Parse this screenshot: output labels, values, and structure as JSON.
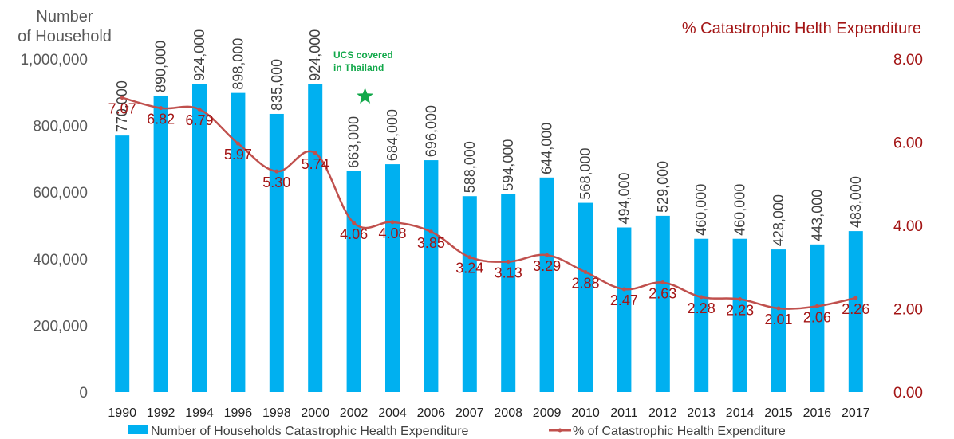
{
  "chart_data": {
    "type": "bar",
    "categories": [
      "1990",
      "1992",
      "1994",
      "1996",
      "1998",
      "2000",
      "2002",
      "2004",
      "2006",
      "2007",
      "2008",
      "2009",
      "2010",
      "2011",
      "2012",
      "2013",
      "2014",
      "2015",
      "2016",
      "2017"
    ],
    "series": [
      {
        "name": "Number of Households Catastrophic Health Expenditure",
        "type": "bar",
        "axis": "left",
        "color": "#00b0f0",
        "values": [
          770000,
          890000,
          924000,
          898000,
          835000,
          924000,
          663000,
          684000,
          696000,
          588000,
          594000,
          644000,
          568000,
          494000,
          529000,
          460000,
          460000,
          428000,
          443000,
          483000
        ],
        "labels": [
          "770,000",
          "890,000",
          "924,000",
          "898,000",
          "835,000",
          "924,000",
          "663,000",
          "684,000",
          "696,000",
          "588,000",
          "594,000",
          "644,000",
          "568,000",
          "494,000",
          "529,000",
          "460,000",
          "460,000",
          "428,000",
          "443,000",
          "483,000"
        ]
      },
      {
        "name": "% of Catastrophic Health Expenditure",
        "type": "line",
        "axis": "right",
        "color": "#c0504d",
        "values": [
          7.07,
          6.82,
          6.79,
          5.97,
          5.3,
          5.74,
          4.06,
          4.08,
          3.85,
          3.24,
          3.13,
          3.29,
          2.88,
          2.47,
          2.63,
          2.28,
          2.23,
          2.01,
          2.06,
          2.26
        ],
        "labels": [
          "7.07",
          "6.82",
          "6.79",
          "5.97",
          "5.30",
          "5.74",
          "4.06",
          "4.08",
          "3.85",
          "3.24",
          "3.13",
          "3.29",
          "2.88",
          "2.47",
          "2.63",
          "2.28",
          "2.23",
          "2.01",
          "2.06",
          "2.26"
        ]
      }
    ],
    "y_left": {
      "title_line1": "Number",
      "title_line2": "of Household",
      "ylim": [
        0,
        1000000
      ],
      "ticks": [
        0,
        200000,
        400000,
        600000,
        800000,
        1000000
      ],
      "tick_labels": [
        "0",
        "200,000",
        "400,000",
        "600,000",
        "800,000",
        "1,000,000"
      ]
    },
    "y_right": {
      "title": "% Catastrophic Helth Expenditure",
      "ylim": [
        0,
        8
      ],
      "ticks": [
        0,
        2,
        4,
        6,
        8
      ],
      "tick_labels": [
        "0.00",
        "2.00",
        "4.00",
        "6.00",
        "8.00"
      ]
    },
    "annotation": {
      "line1": "UCS covered",
      "line2": "in Thailand",
      "marker": "star-icon",
      "category": "2002",
      "color": "#12a84a"
    },
    "grid": false,
    "legend": {
      "placement": "bottom",
      "bar_label": "Number of Households Catastrophic Health Expenditure",
      "line_label": "% of Catastrophic Health Expenditure"
    }
  }
}
